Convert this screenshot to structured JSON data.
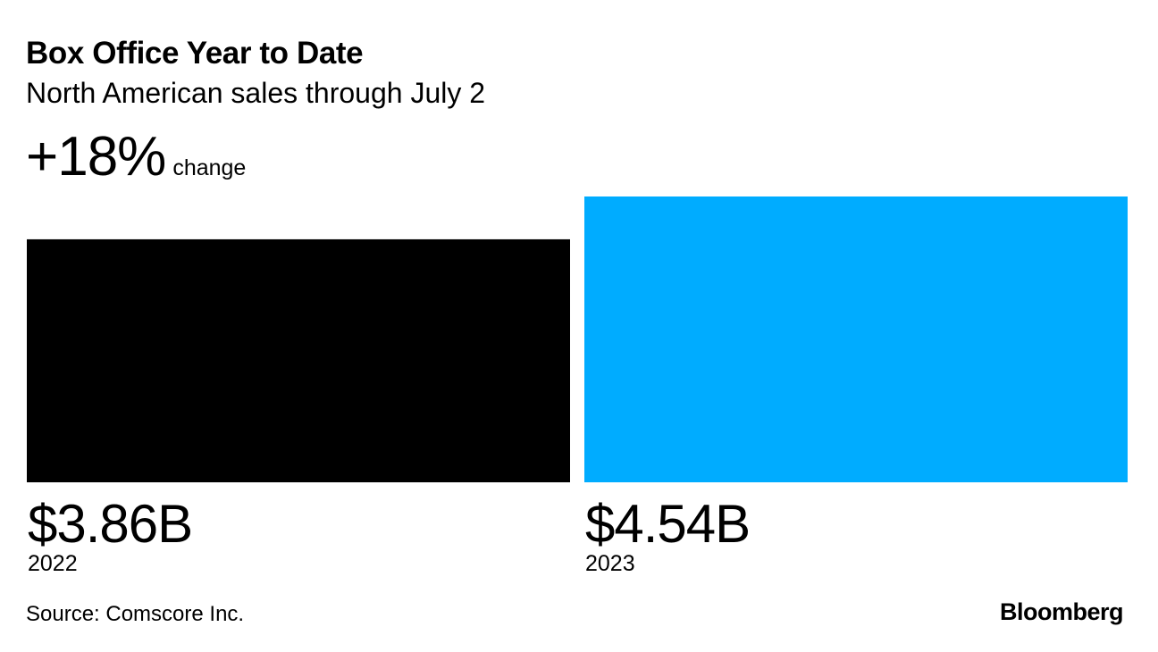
{
  "chart_data": {
    "type": "bar",
    "title": "Box Office Year to Date",
    "subtitle": "North American sales through July 2",
    "change": {
      "value": "+18%",
      "label": "change"
    },
    "categories": [
      "2022",
      "2023"
    ],
    "values": [
      3.86,
      4.54
    ],
    "value_labels": [
      "$3.86B",
      "$4.54B"
    ],
    "unit": "billion USD",
    "ylim": [
      0,
      4.54
    ],
    "colors": [
      "#000000",
      "#00acff"
    ],
    "xlabel": "",
    "ylabel": ""
  },
  "footer": {
    "source": "Source: Comscore Inc.",
    "brand": "Bloomberg"
  }
}
